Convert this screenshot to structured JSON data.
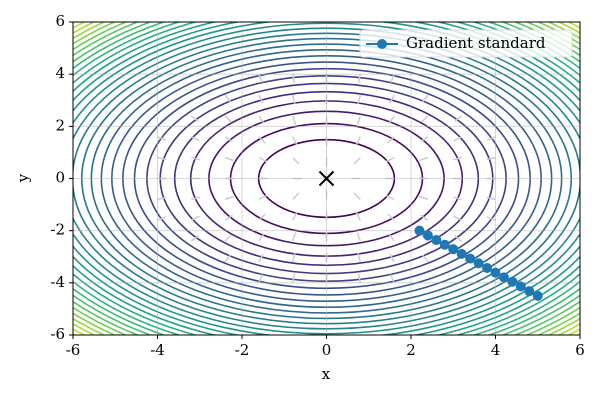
{
  "chart_data": {
    "type": "line",
    "xlabel": "x",
    "ylabel": "y",
    "xlim": [
      -6,
      6
    ],
    "ylim": [
      -6,
      6
    ],
    "xticks": [
      -6,
      -4,
      -2,
      0,
      2,
      4,
      6
    ],
    "yticks": [
      -6,
      -4,
      -2,
      0,
      2,
      4,
      6
    ],
    "grid": true,
    "legend": "upper right",
    "series": [
      {
        "name": "Gradient standard",
        "color": "#1f77b4",
        "x": [
          5.0,
          4.8,
          4.6,
          4.4,
          4.2,
          4.0,
          3.8,
          3.6,
          3.4,
          3.2,
          3.0,
          2.8,
          2.6,
          2.4,
          2.2
        ],
        "y": [
          -4.5,
          -4.32,
          -4.14,
          -3.96,
          -3.79,
          -3.61,
          -3.43,
          -3.25,
          -3.07,
          -2.89,
          -2.71,
          -2.54,
          -2.36,
          -2.18,
          -2.0
        ]
      }
    ],
    "minimum": {
      "x": 0,
      "y": 0,
      "color": "#000000"
    }
  }
}
